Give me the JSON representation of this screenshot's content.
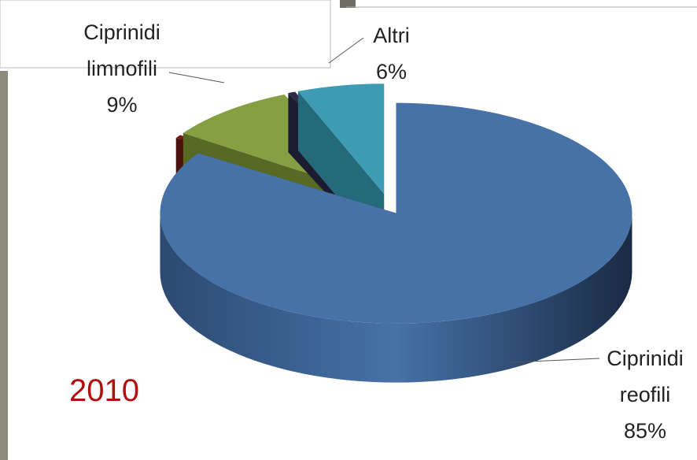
{
  "chart_data": {
    "type": "pie",
    "annotation": "2010",
    "categories": [
      "Ciprinidi reofili",
      null,
      "Ciprinidi limnofili",
      null,
      "Altri"
    ],
    "values": [
      85,
      0.5,
      9,
      0.5,
      6
    ],
    "value_labels": [
      "85%",
      null,
      "9%",
      null,
      "6%"
    ],
    "colors": [
      "#4672a8",
      "#6e1c14",
      "#84a043",
      "#2c2c4c",
      "#3d9cb3"
    ],
    "side_colors": [
      "#2c4a72",
      "#4a120c",
      "#566a26",
      "#1c1c30",
      "#256a7a"
    ]
  }
}
